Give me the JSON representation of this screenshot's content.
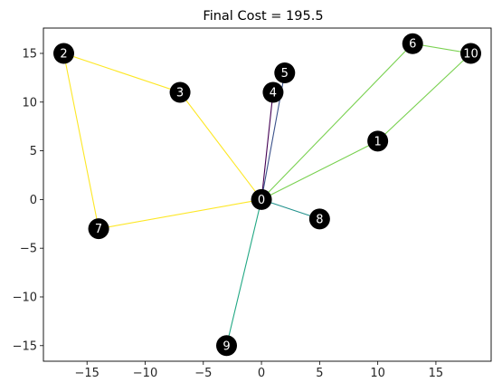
{
  "chart_data": {
    "type": "scatter",
    "title": "Final Cost = 195.5",
    "xlabel": "",
    "ylabel": "",
    "xlim": [
      -18.75,
      19.75
    ],
    "ylim": [
      -16.6,
      17.6
    ],
    "xticks": [
      -15,
      -10,
      -5,
      0,
      5,
      10,
      15
    ],
    "yticks": [
      -15,
      -10,
      -5,
      0,
      5,
      10,
      15
    ],
    "xtick_labels": [
      "−15",
      "−10",
      "−5",
      "0",
      "5",
      "10",
      "15"
    ],
    "ytick_labels": [
      "−15",
      "−10",
      "−5",
      "0",
      "5",
      "10",
      "15"
    ],
    "grid": false,
    "nodes": [
      {
        "id": "0",
        "x": 0,
        "y": 0
      },
      {
        "id": "1",
        "x": 10,
        "y": 6
      },
      {
        "id": "2",
        "x": -17,
        "y": 15
      },
      {
        "id": "3",
        "x": -7,
        "y": 11
      },
      {
        "id": "4",
        "x": 1,
        "y": 11
      },
      {
        "id": "5",
        "x": 2,
        "y": 13
      },
      {
        "id": "6",
        "x": 13,
        "y": 16
      },
      {
        "id": "7",
        "x": -14,
        "y": -3
      },
      {
        "id": "8",
        "x": 5,
        "y": -2
      },
      {
        "id": "9",
        "x": -3,
        "y": -15
      },
      {
        "id": "10",
        "x": 18,
        "y": 15
      }
    ],
    "routes": [
      {
        "color": "#fde725",
        "path": [
          "0",
          "3",
          "2",
          "7",
          "0"
        ]
      },
      {
        "color": "#7ad151",
        "path": [
          "0",
          "6",
          "10",
          "1",
          "0"
        ]
      },
      {
        "color": "#440154",
        "path": [
          "0",
          "4",
          "0"
        ]
      },
      {
        "color": "#3b528b",
        "path": [
          "0",
          "5",
          "0"
        ]
      },
      {
        "color": "#21918c",
        "path": [
          "0",
          "8",
          "0"
        ]
      },
      {
        "color": "#22a884",
        "path": [
          "0",
          "9",
          "0"
        ]
      }
    ],
    "node_color": "#000000",
    "label_color": "#ffffff"
  }
}
